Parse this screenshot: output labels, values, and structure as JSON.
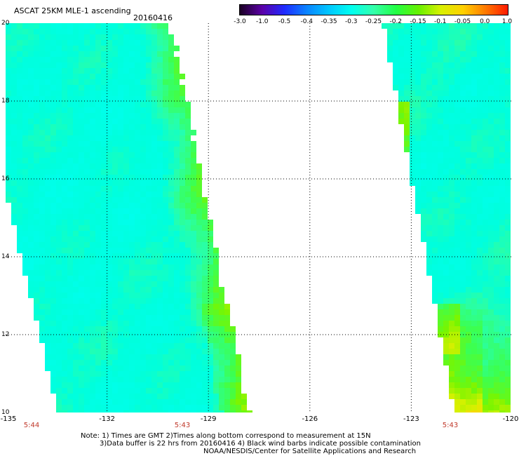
{
  "header": {
    "title": "ASCAT 25KM MLE-1 ascending",
    "date": "20160416"
  },
  "colorbar": {
    "labels": [
      "-3.0",
      "-1.0",
      "-0.5",
      "-0.4",
      "-0.35",
      "-0.3",
      "-0.25",
      "-0.2",
      "-0.15",
      "-0.1",
      "-0.05",
      "0.0",
      "1.0"
    ],
    "colors": [
      "#1a0023",
      "#5b00a8",
      "#1f2bff",
      "#0a84ff",
      "#00c8ff",
      "#00fff0",
      "#33ffaa",
      "#22ff44",
      "#66f000",
      "#d8f000",
      "#ffd000",
      "#ff7a00",
      "#ff1a00"
    ]
  },
  "axes": {
    "lat_labels": [
      "20",
      "18",
      "16",
      "14",
      "12",
      "10"
    ],
    "lon_labels": [
      "-135",
      "-132",
      "-129",
      "-126",
      "-123",
      "-120"
    ],
    "time_labels": [
      "5:44",
      "5:43",
      "5:43"
    ]
  },
  "notes": {
    "line1": "Note: 1) Times are GMT 2)Times along bottom correspond to measurement at 15N",
    "line2": "3)Data buffer is 22 hrs from 20160416 4) Black wind barbs indicate possible contamination",
    "line3": "NOAA/NESDIS/Center for Satellite Applications and Research"
  },
  "colors": {
    "time_label": "#c0392b",
    "background": "#ffffff",
    "grid": "#000000"
  }
}
